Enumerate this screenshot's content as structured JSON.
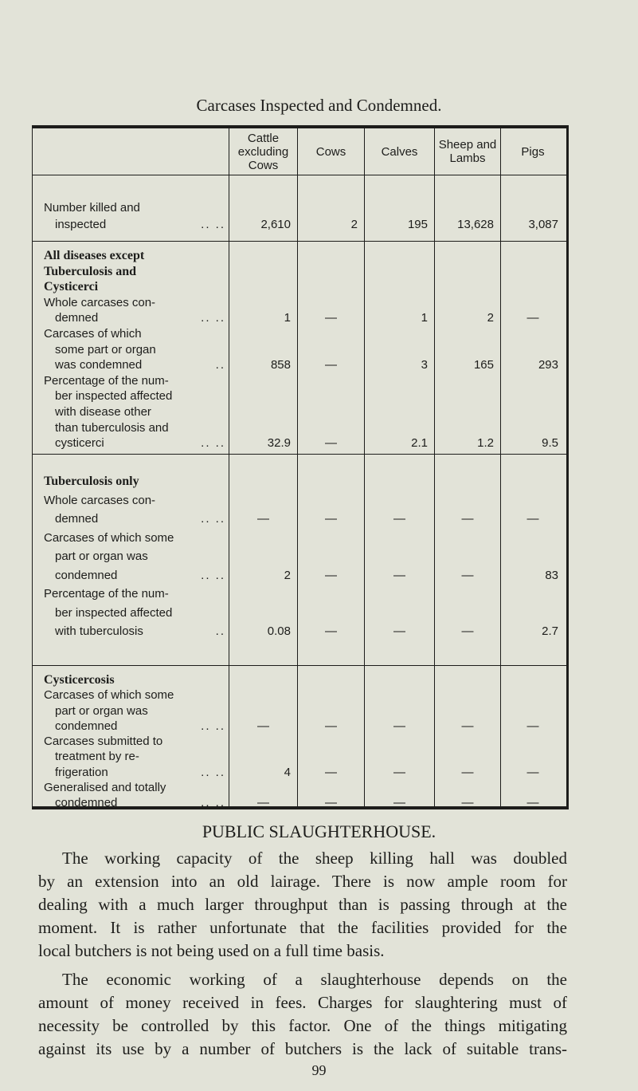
{
  "title": "Carcases Inspected and Condemned.",
  "table": {
    "headers": [
      "",
      "Cattle excluding Cows",
      "Cows",
      "Calves",
      "Sheep and Lambs",
      "Pigs"
    ],
    "sections": [
      {
        "lines": [
          {
            "label": "Number killed and"
          },
          {
            "label": "inspected",
            "indent": true,
            "leader": ".. ..",
            "values": [
              "2,610",
              "2",
              "195",
              "13,628",
              "3,087"
            ]
          }
        ]
      },
      {
        "lines": [
          {
            "label": "All diseases except",
            "bold": true
          },
          {
            "label": "Tuberculosis and",
            "bold": true
          },
          {
            "label": "Cysticerci",
            "bold": true
          },
          {
            "label": "Whole carcases con-"
          },
          {
            "label": "demned",
            "indent": true,
            "leader": ".. ..",
            "values": [
              "1",
              "—",
              "1",
              "2",
              "—"
            ]
          },
          {
            "label": "Carcases of which"
          },
          {
            "label": "some part or organ",
            "indent": true
          },
          {
            "label": "was condemned",
            "indent": true,
            "leader": "..",
            "values": [
              "858",
              "—",
              "3",
              "165",
              "293"
            ]
          },
          {
            "label": "Percentage of the num-"
          },
          {
            "label": "ber inspected affected",
            "indent": true
          },
          {
            "label": "with disease other",
            "indent": true
          },
          {
            "label": "than tuberculosis and",
            "indent": true
          },
          {
            "label": "cysticerci",
            "indent": true,
            "leader": ".. ..",
            "values": [
              "32.9",
              "—",
              "2.1",
              "1.2",
              "9.5"
            ]
          }
        ]
      },
      {
        "lines": [
          {
            "label": "Tuberculosis only",
            "bold": true
          },
          {
            "label": "Whole carcases con-"
          },
          {
            "label": "demned",
            "indent": true,
            "leader": ".. ..",
            "values": [
              "—",
              "—",
              "—",
              "—",
              "—"
            ]
          },
          {
            "label": "Carcases of which some"
          },
          {
            "label": "part or organ was",
            "indent": true
          },
          {
            "label": "condemned",
            "indent": true,
            "leader": ".. ..",
            "values": [
              "2",
              "—",
              "—",
              "—",
              "83"
            ]
          },
          {
            "label": "Percentage of the num-"
          },
          {
            "label": "ber inspected affected",
            "indent": true
          },
          {
            "label": "with tuberculosis",
            "indent": true,
            "leader": "..",
            "values": [
              "0.08",
              "—",
              "—",
              "—",
              "2.7"
            ]
          }
        ]
      },
      {
        "lines": [
          {
            "label": "Cysticercosis",
            "bold": true
          },
          {
            "label": "Carcases of which some"
          },
          {
            "label": "part or organ was",
            "indent": true
          },
          {
            "label": "condemned",
            "indent": true,
            "leader": ".. ..",
            "values": [
              "—",
              "—",
              "—",
              "—",
              "—"
            ]
          },
          {
            "label": "Carcases submitted to"
          },
          {
            "label": "treatment by re-",
            "indent": true
          },
          {
            "label": "frigeration",
            "indent": true,
            "leader": ".. ..",
            "values": [
              "4",
              "—",
              "—",
              "—",
              "—"
            ]
          },
          {
            "label": "Generalised and totally"
          },
          {
            "label": "condemned",
            "indent": true,
            "leader": ".. ..",
            "values": [
              "—",
              "—",
              "—",
              "—",
              "—"
            ]
          }
        ]
      }
    ]
  },
  "heading": "PUBLIC SLAUGHTERHOUSE.",
  "paragraphs": [
    [
      "The working capacity of the sheep killing hall was doubled",
      "by an extension into an old lairage. There is now ample room for",
      "dealing with a much larger throughput than is passing through at the",
      "moment. It is rather unfortunate that the facilities provided for the",
      "local butchers is not being used on a full time basis."
    ],
    [
      "The economic working of a slaughterhouse depends on the",
      "amount of money received in fees. Charges for slaughtering must of",
      "necessity be controlled by this factor. One of the things mitigating",
      "against its use by a number of butchers is the lack of suitable trans-"
    ]
  ],
  "page_number": "99"
}
